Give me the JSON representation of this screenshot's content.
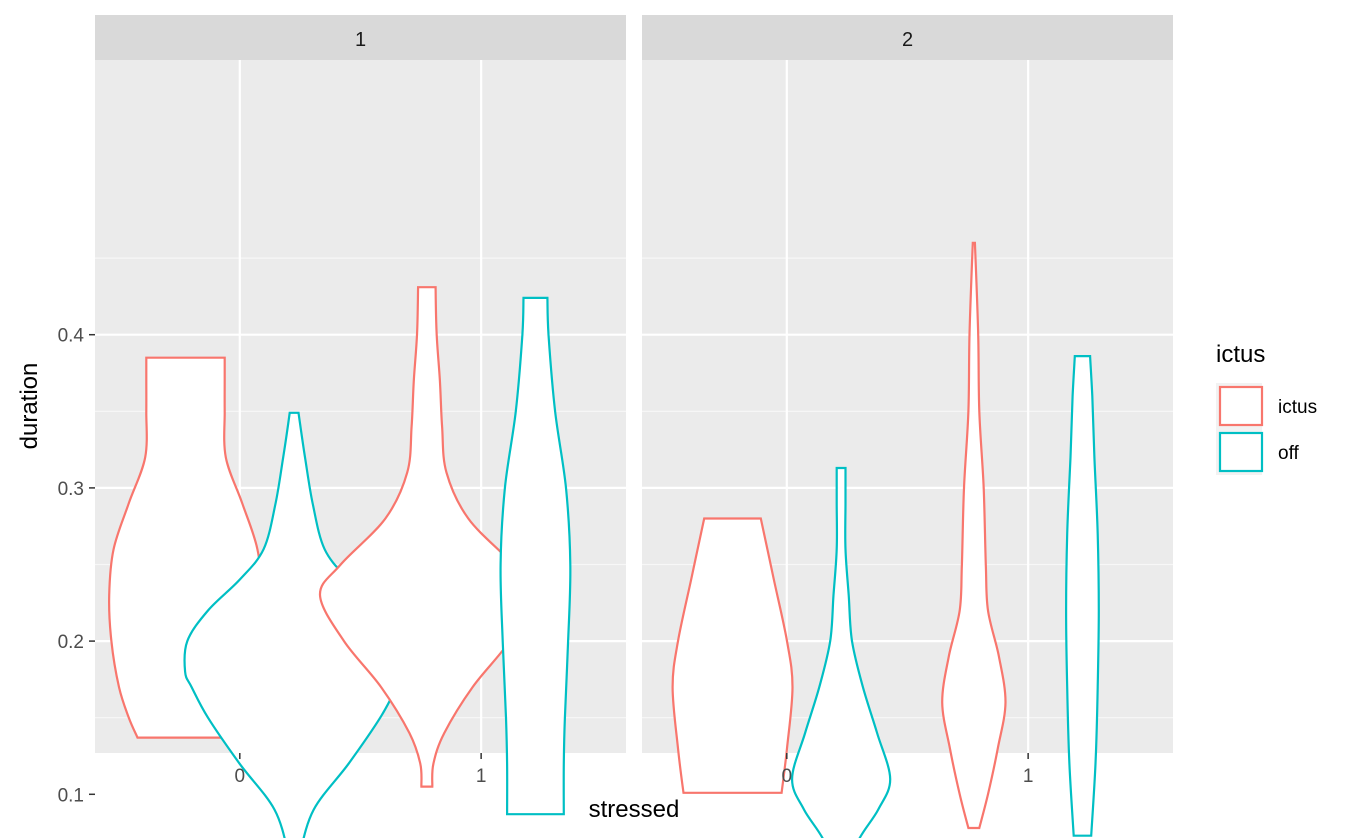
{
  "chart_data": {
    "type": "violin",
    "xlabel": "stressed",
    "ylabel": "duration",
    "x_categories": [
      "0",
      "1"
    ],
    "y_ticks": [
      0.1,
      0.2,
      0.3,
      0.4
    ],
    "ylim": [
      0.027,
      0.48
    ],
    "grid": true,
    "legend": {
      "title": "ictus",
      "position": "right",
      "items": [
        {
          "label": "ictus",
          "color": "#F8766D"
        },
        {
          "label": "off",
          "color": "#00BFC4"
        }
      ]
    },
    "facets": [
      {
        "label": "1",
        "violins": [
          {
            "stressed": "0",
            "group": "ictus",
            "color": "#F8766D",
            "profile": [
              [
                0.137,
                0.44
              ],
              [
                0.15,
                0.52
              ],
              [
                0.17,
                0.61
              ],
              [
                0.2,
                0.68
              ],
              [
                0.23,
                0.7
              ],
              [
                0.26,
                0.66
              ],
              [
                0.29,
                0.52
              ],
              [
                0.32,
                0.37
              ],
              [
                0.35,
                0.36
              ],
              [
                0.37,
                0.36
              ],
              [
                0.385,
                0.36
              ]
            ]
          },
          {
            "stressed": "0",
            "group": "off",
            "color": "#00BFC4",
            "profile": [
              [
                0.047,
                0.03
              ],
              [
                0.06,
                0.05
              ],
              [
                0.09,
                0.18
              ],
              [
                0.12,
                0.5
              ],
              [
                0.15,
                0.79
              ],
              [
                0.17,
                0.94
              ],
              [
                0.18,
                1.0
              ],
              [
                0.2,
                0.98
              ],
              [
                0.22,
                0.79
              ],
              [
                0.24,
                0.5
              ],
              [
                0.26,
                0.28
              ],
              [
                0.29,
                0.17
              ],
              [
                0.32,
                0.1
              ],
              [
                0.349,
                0.04
              ]
            ]
          },
          {
            "stressed": "1",
            "group": "ictus",
            "color": "#F8766D",
            "profile": [
              [
                0.105,
                0.05
              ],
              [
                0.12,
                0.06
              ],
              [
                0.14,
                0.16
              ],
              [
                0.17,
                0.42
              ],
              [
                0.2,
                0.76
              ],
              [
                0.23,
                0.98
              ],
              [
                0.25,
                0.79
              ],
              [
                0.28,
                0.38
              ],
              [
                0.31,
                0.18
              ],
              [
                0.34,
                0.14
              ],
              [
                0.37,
                0.12
              ],
              [
                0.4,
                0.09
              ],
              [
                0.431,
                0.08
              ]
            ]
          },
          {
            "stressed": "1",
            "group": "off",
            "color": "#00BFC4",
            "profile": [
              [
                0.087,
                0.26
              ],
              [
                0.12,
                0.26
              ],
              [
                0.15,
                0.27
              ],
              [
                0.2,
                0.3
              ],
              [
                0.25,
                0.32
              ],
              [
                0.3,
                0.28
              ],
              [
                0.35,
                0.18
              ],
              [
                0.4,
                0.12
              ],
              [
                0.424,
                0.11
              ]
            ]
          }
        ]
      },
      {
        "label": "2",
        "violins": [
          {
            "stressed": "0",
            "group": "ictus",
            "color": "#F8766D",
            "profile": [
              [
                0.101,
                0.45
              ],
              [
                0.13,
                0.5
              ],
              [
                0.17,
                0.55
              ],
              [
                0.2,
                0.5
              ],
              [
                0.24,
                0.38
              ],
              [
                0.28,
                0.26
              ]
            ]
          },
          {
            "stressed": "0",
            "group": "off",
            "color": "#00BFC4",
            "profile": [
              [
                0.05,
                0.08
              ],
              [
                0.07,
                0.16
              ],
              [
                0.09,
                0.34
              ],
              [
                0.11,
                0.45
              ],
              [
                0.14,
                0.33
              ],
              [
                0.17,
                0.2
              ],
              [
                0.2,
                0.1
              ],
              [
                0.23,
                0.07
              ],
              [
                0.26,
                0.04
              ],
              [
                0.29,
                0.04
              ],
              [
                0.313,
                0.04
              ]
            ]
          },
          {
            "stressed": "1",
            "group": "ictus",
            "color": "#F8766D",
            "profile": [
              [
                0.078,
                0.05
              ],
              [
                0.1,
                0.13
              ],
              [
                0.13,
                0.22
              ],
              [
                0.16,
                0.29
              ],
              [
                0.19,
                0.23
              ],
              [
                0.22,
                0.13
              ],
              [
                0.25,
                0.11
              ],
              [
                0.3,
                0.09
              ],
              [
                0.35,
                0.05
              ],
              [
                0.4,
                0.04
              ],
              [
                0.46,
                0.01
              ]
            ]
          },
          {
            "stressed": "1",
            "group": "off",
            "color": "#00BFC4",
            "profile": [
              [
                0.073,
                0.08
              ],
              [
                0.12,
                0.12
              ],
              [
                0.17,
                0.14
              ],
              [
                0.22,
                0.15
              ],
              [
                0.27,
                0.14
              ],
              [
                0.32,
                0.11
              ],
              [
                0.36,
                0.09
              ],
              [
                0.386,
                0.07
              ]
            ]
          }
        ]
      }
    ]
  }
}
